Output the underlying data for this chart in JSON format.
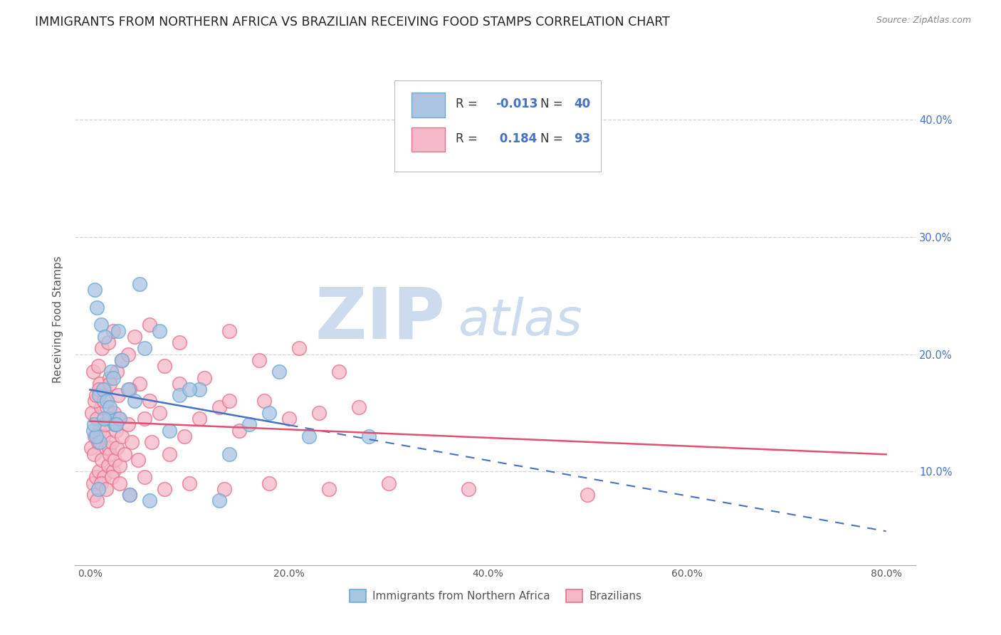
{
  "title": "IMMIGRANTS FROM NORTHERN AFRICA VS BRAZILIAN RECEIVING FOOD STAMPS CORRELATION CHART",
  "source": "Source: ZipAtlas.com",
  "xlabel_vals": [
    0.0,
    20.0,
    40.0,
    60.0,
    80.0
  ],
  "ylabel_vals": [
    10.0,
    20.0,
    30.0,
    40.0
  ],
  "xlim": [
    -1.5,
    83
  ],
  "ylim": [
    2,
    44
  ],
  "series1_label": "Immigrants from Northern Africa",
  "series1_R": "-0.013",
  "series1_N": "40",
  "series1_color": "#aac4e2",
  "series1_edge": "#6aaad4",
  "series2_label": "Brazilians",
  "series2_R": "0.184",
  "series2_N": "93",
  "series2_color": "#f5b8c8",
  "series2_edge": "#e8708a",
  "trend1_color": "#4472c4",
  "trend2_color": "#e05070",
  "background_color": "#ffffff",
  "grid_color": "#c8c8c8",
  "title_fontsize": 12.5,
  "ylabel_label": "Receiving Food Stamps",
  "watermark_zip": "ZIP",
  "watermark_atlas": "atlas",
  "watermark_color": "#ccdcee",
  "series1_x": [
    0.3,
    0.5,
    0.7,
    0.9,
    1.1,
    1.3,
    1.5,
    1.7,
    1.9,
    2.1,
    2.3,
    2.5,
    2.8,
    3.2,
    3.8,
    4.5,
    5.5,
    7.0,
    9.0,
    11.0,
    13.0,
    16.0,
    19.0,
    10.0,
    5.0,
    3.0,
    2.0,
    1.0,
    0.6,
    0.4,
    0.8,
    1.4,
    2.6,
    4.0,
    6.0,
    8.0,
    14.0,
    18.0,
    22.0,
    28.0
  ],
  "series1_y": [
    13.5,
    25.5,
    24.0,
    16.5,
    22.5,
    17.0,
    21.5,
    16.0,
    14.5,
    18.5,
    18.0,
    14.0,
    22.0,
    19.5,
    17.0,
    16.0,
    20.5,
    22.0,
    16.5,
    17.0,
    7.5,
    14.0,
    18.5,
    17.0,
    26.0,
    14.5,
    15.5,
    12.5,
    13.0,
    14.0,
    8.5,
    14.5,
    14.0,
    8.0,
    7.5,
    13.5,
    11.5,
    15.0,
    13.0,
    13.0
  ],
  "series2_x": [
    0.1,
    0.2,
    0.3,
    0.4,
    0.5,
    0.6,
    0.7,
    0.8,
    0.9,
    1.0,
    1.1,
    1.2,
    1.3,
    1.4,
    1.5,
    1.6,
    1.7,
    1.8,
    1.9,
    2.0,
    2.1,
    2.2,
    2.3,
    2.4,
    2.5,
    2.6,
    2.7,
    2.8,
    3.0,
    3.2,
    3.5,
    3.8,
    4.2,
    4.8,
    5.5,
    6.2,
    7.0,
    8.0,
    9.5,
    11.0,
    13.0,
    15.0,
    17.5,
    20.0,
    23.0,
    27.0,
    0.3,
    0.5,
    0.8,
    1.0,
    1.2,
    1.5,
    1.8,
    2.0,
    2.3,
    2.7,
    3.2,
    3.8,
    4.5,
    5.0,
    6.0,
    7.5,
    9.0,
    11.5,
    14.0,
    17.0,
    21.0,
    25.0,
    0.4,
    0.7,
    1.1,
    1.6,
    2.2,
    3.0,
    4.0,
    5.5,
    7.5,
    10.0,
    13.5,
    18.0,
    24.0,
    30.0,
    38.0,
    50.0,
    0.6,
    0.9,
    1.4,
    2.0,
    2.8,
    4.0,
    6.0,
    9.0,
    14.0
  ],
  "series2_y": [
    12.0,
    15.0,
    9.0,
    11.5,
    13.0,
    9.5,
    14.5,
    12.5,
    10.0,
    13.5,
    15.5,
    11.0,
    13.0,
    9.5,
    14.0,
    12.0,
    15.5,
    10.5,
    12.0,
    11.5,
    14.5,
    12.5,
    10.0,
    15.0,
    11.0,
    13.5,
    12.0,
    14.5,
    10.5,
    13.0,
    11.5,
    14.0,
    12.5,
    11.0,
    14.5,
    12.5,
    15.0,
    11.5,
    13.0,
    14.5,
    15.5,
    13.5,
    16.0,
    14.5,
    15.0,
    15.5,
    18.5,
    16.0,
    19.0,
    17.5,
    20.5,
    17.0,
    21.0,
    18.0,
    22.0,
    18.5,
    19.5,
    20.0,
    21.5,
    17.5,
    22.5,
    19.0,
    21.0,
    18.0,
    22.0,
    19.5,
    20.5,
    18.5,
    8.0,
    7.5,
    9.0,
    8.5,
    9.5,
    9.0,
    8.0,
    9.5,
    8.5,
    9.0,
    8.5,
    9.0,
    8.5,
    9.0,
    8.5,
    8.0,
    16.5,
    17.0,
    16.0,
    17.5,
    16.5,
    17.0,
    16.0,
    17.5,
    16.0
  ]
}
